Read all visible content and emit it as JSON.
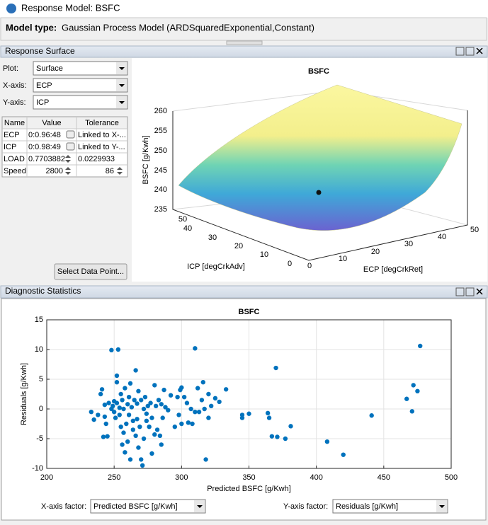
{
  "window": {
    "title": "Response Model: BSFC",
    "model_type_label": "Model type:",
    "model_type": "Gaussian Process Model (ARDSquaredExponential,Constant)"
  },
  "response_surface": {
    "panel_title": "Response Surface",
    "controls": [
      {
        "label": "Plot:",
        "value": "Surface"
      },
      {
        "label": "X-axis:",
        "value": "ECP"
      },
      {
        "label": "Y-axis:",
        "value": "ICP"
      }
    ],
    "table": {
      "columns": [
        "Name",
        "Value",
        "Tolerance"
      ],
      "rows": [
        [
          "ECP",
          "0:0.96:48",
          "Linked to X-..."
        ],
        [
          "ICP",
          "0:0.98:49",
          "Linked to Y-..."
        ],
        [
          "LOAD",
          "0.7703882",
          "0.0229933"
        ],
        [
          "Speed",
          2800,
          86
        ]
      ]
    },
    "button": "Select Data Point...",
    "plot": {
      "title": "BSFC",
      "zlabel": "BSFC [g/Kwh]",
      "zticks": [
        260,
        255,
        250,
        245,
        240,
        235
      ],
      "ylabel": "ICP [degCrkAdv]",
      "yticks": [
        50,
        40,
        30,
        20,
        10,
        0
      ],
      "xlabel": "ECP [degCrkRet]",
      "xticks": [
        0,
        10,
        20,
        30,
        40,
        50
      ]
    }
  },
  "diagnostic_statistics": {
    "panel_title": "Diagnostic Statistics",
    "chart_data": {
      "type": "scatter",
      "title": "BSFC",
      "x_label": "Predicted BSFC [g/Kwh]",
      "y_label": "Residuals [g/Kwh]",
      "color": "#0072bd",
      "grid": true,
      "xlim": [
        200,
        500
      ],
      "ylim": [
        -10,
        15
      ],
      "xticks": [
        200,
        250,
        300,
        350,
        400,
        450,
        500
      ],
      "yticks": [
        -10,
        -5,
        0,
        5,
        10,
        15
      ],
      "x": [
        233,
        235,
        238,
        240,
        241,
        242,
        243,
        243,
        244,
        245,
        246,
        248,
        248,
        249,
        250,
        250,
        251,
        252,
        252,
        252,
        253,
        254,
        254,
        255,
        255,
        256,
        256,
        257,
        257,
        258,
        258,
        259,
        260,
        260,
        261,
        261,
        262,
        262,
        263,
        264,
        264,
        265,
        266,
        266,
        267,
        267,
        268,
        268,
        269,
        270,
        270,
        271,
        272,
        272,
        273,
        274,
        274,
        275,
        276,
        277,
        278,
        278,
        280,
        280,
        281,
        282,
        283,
        284,
        285,
        285,
        286,
        287,
        288,
        290,
        292,
        295,
        297,
        298,
        299,
        300,
        300,
        302,
        304,
        305,
        307,
        308,
        310,
        310,
        312,
        313,
        315,
        316,
        317,
        318,
        320,
        320,
        322,
        325,
        328,
        333,
        345,
        345,
        350,
        364,
        365,
        367,
        370,
        371,
        377,
        381,
        408,
        420,
        441,
        467,
        471,
        472,
        475,
        477
      ],
      "y": [
        -0.5,
        -1.8,
        -1,
        2.5,
        3.3,
        -4.7,
        -1.3,
        0.7,
        -2.5,
        -4.6,
        1,
        9.9,
        0,
        0.5,
        -0.5,
        1.3,
        -1.5,
        4.5,
        5.6,
        1,
        10,
        -1,
        0.2,
        -3,
        2.5,
        -6,
        1.5,
        -4,
        0,
        -7.3,
        3.5,
        -2.5,
        0.8,
        -5.5,
        -1,
        2,
        -8.5,
        4.3,
        0.3,
        -3.5,
        -2,
        1.5,
        -4.5,
        6.5,
        -1.7,
        0.9,
        3,
        -6.5,
        -3,
        1.5,
        -8.5,
        -9.5,
        0,
        -5,
        2,
        -2,
        -0.8,
        0.5,
        -3,
        1,
        -7.5,
        -1.5,
        4,
        -4.3,
        0.5,
        -3.5,
        1.5,
        -4.5,
        -6,
        0.8,
        -1.5,
        3.2,
        0.3,
        -0.2,
        2.3,
        -3,
        2,
        -1,
        3.2,
        -2.5,
        3.6,
        2,
        1,
        -2.3,
        0,
        -2.5,
        10.2,
        -0.5,
        3.5,
        -0.5,
        1.5,
        4.5,
        0,
        -8.5,
        -1.5,
        2.5,
        0.5,
        1.8,
        1.2,
        3.3,
        -1,
        -1.5,
        -0.8,
        -0.7,
        -1.5,
        -4.6,
        6.9,
        -4.7,
        -5,
        -2.9,
        -5.5,
        -7.7,
        -1.1,
        1.7,
        -0.4,
        4,
        3,
        10.6
      ]
    },
    "x_factor_label": "X-axis factor:",
    "x_factor": "Predicted BSFC [g/Kwh]",
    "y_factor_label": "Y-axis factor:",
    "y_factor": "Residuals [g/Kwh]"
  }
}
